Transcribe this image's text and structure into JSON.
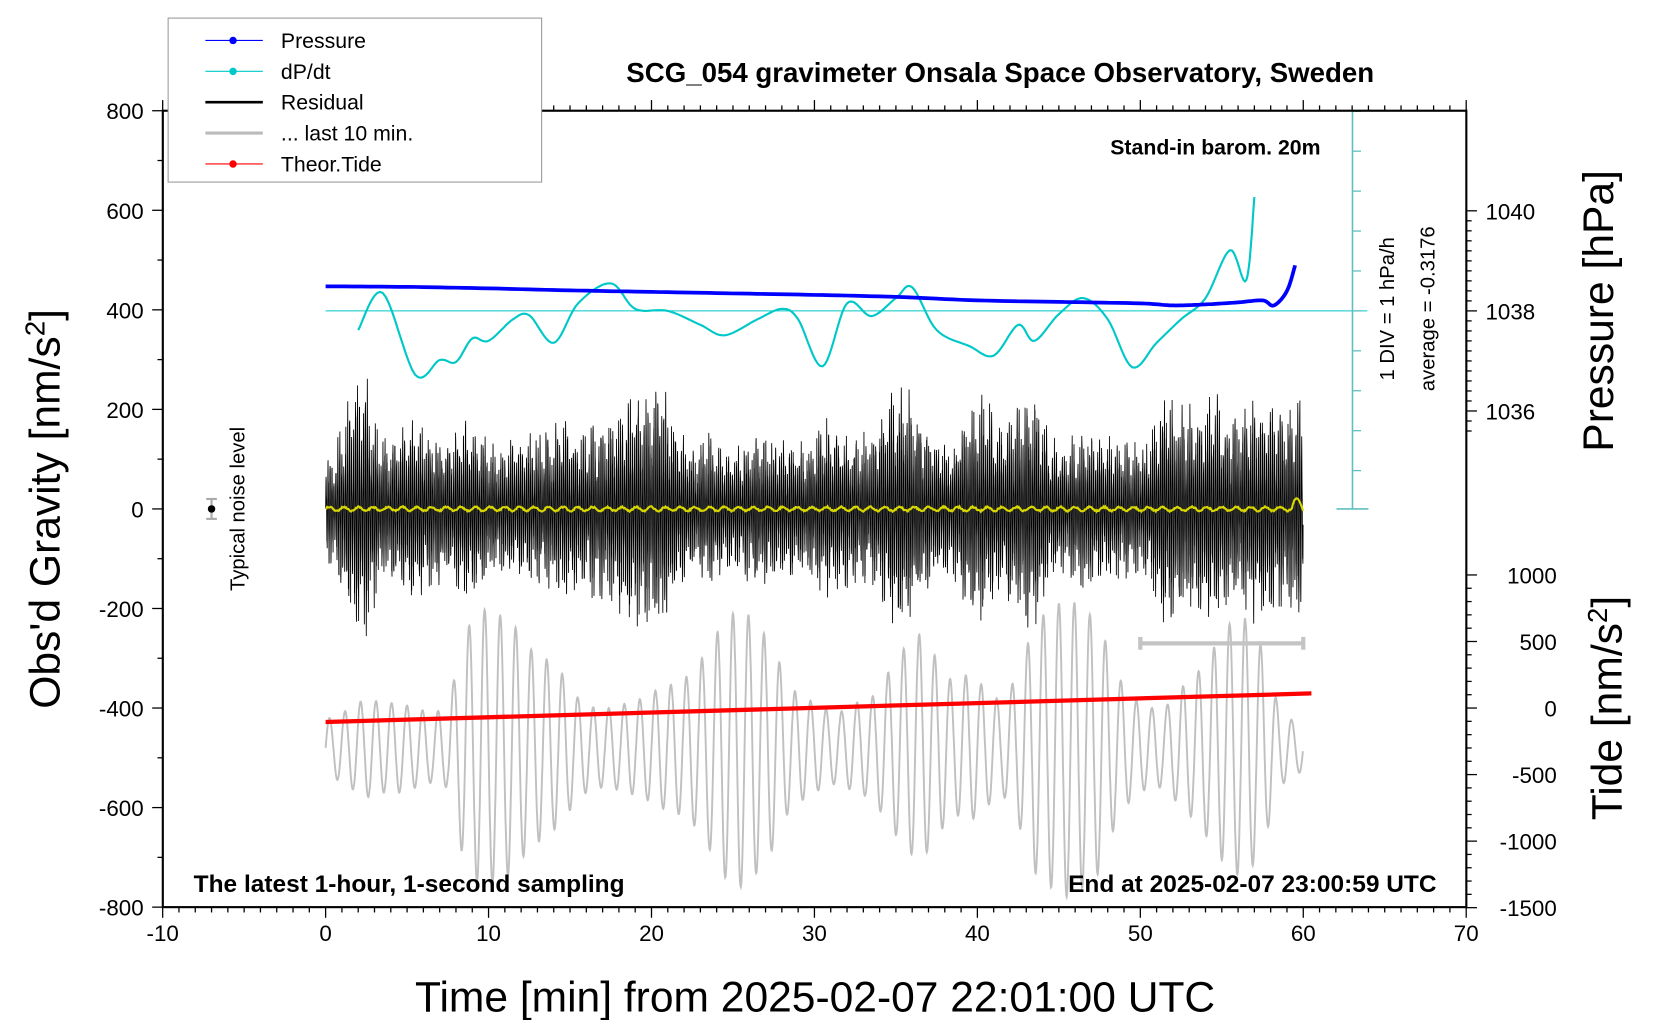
{
  "chart_data": {
    "type": "line",
    "title": "SCG_054 gravimeter Onsala Space Observatory, Sweden",
    "xlabel": "Time [min] from 2025-02-07 22:01:00 UTC",
    "ylabel_left": "Obs'd Gravity [nm/s",
    "ylabel_left_sup": "2",
    "ylabel_left_close": "]",
    "ylabel_right_top": "Pressure [hPa]",
    "ylabel_right_bottom": "Tide [nm/s",
    "ylabel_right_bottom_sup": "2",
    "ylabel_right_bottom_close": "]",
    "xlim": [
      -10,
      70
    ],
    "ylim_gravity": [
      -800,
      800
    ],
    "x_ticks": [
      "-10",
      "0",
      "10",
      "20",
      "30",
      "40",
      "50",
      "60",
      "70"
    ],
    "y_ticks_gravity": [
      "800",
      "600",
      "400",
      "200",
      "0",
      "-200",
      "-400",
      "-600",
      "-800"
    ],
    "y_ticks_pressure": [
      "1040",
      "1038",
      "1036"
    ],
    "y_ticks_tide": [
      "1000",
      "500",
      "0",
      "-500",
      "-1000",
      "-1500"
    ],
    "annotations": {
      "stand_in": "Stand-in barom. 20m",
      "div_label": "1 DIV = 1 hPa/h",
      "average": "average = -0.3176",
      "noise_label": "Typical noise level",
      "bottom_left": "The latest 1-hour, 1-second sampling",
      "bottom_right": "End at 2025-02-07 23:00:59 UTC"
    },
    "legend": {
      "placement": "top-left",
      "items": [
        {
          "label": "Pressure",
          "color": "#0000ff",
          "marker": true
        },
        {
          "label": "dP/dt",
          "color": "#00c8c8",
          "marker": true
        },
        {
          "label": "Residual",
          "color": "#000000",
          "marker": false
        },
        {
          "label": "... last 10 min.",
          "color": "#bbbbbb",
          "marker": false
        },
        {
          "label": "Theor.Tide",
          "color": "#ff0000",
          "marker": true
        }
      ]
    },
    "colors": {
      "pressure": "#0000ff",
      "dpdt": "#00c8c8",
      "residual": "#000000",
      "last10": "#c0c0c0",
      "tide": "#ff0000",
      "filtered": "#d8d800",
      "scale": "#5fbfbf"
    },
    "series": [
      {
        "name": "Pressure",
        "unit": "hPa",
        "x": [
          0,
          5,
          10,
          15,
          20,
          25,
          30,
          35,
          40,
          45,
          50,
          52,
          54,
          56,
          57.5,
          58.2,
          59,
          59.5
        ],
        "values": [
          1038.49,
          1038.48,
          1038.45,
          1038.41,
          1038.38,
          1038.35,
          1038.32,
          1038.28,
          1038.21,
          1038.18,
          1038.15,
          1038.11,
          1038.13,
          1038.17,
          1038.21,
          1038.11,
          1038.4,
          1038.91
        ]
      },
      {
        "name": "dP/dt",
        "unit": "hPa/h",
        "x": [
          2,
          3.5,
          5.5,
          7,
          8,
          9,
          10,
          11.5,
          12.5,
          14,
          15.5,
          17.5,
          19,
          21,
          23,
          24.5,
          26.5,
          28,
          29,
          30.5,
          32,
          33.5,
          35,
          36,
          37.5,
          39.5,
          41,
          42.5,
          43.5,
          45,
          46.5,
          48,
          49.5,
          51,
          52.5,
          54,
          55.5,
          56.5,
          57
        ],
        "values": [
          -0.48,
          0.45,
          -1.6,
          -1.23,
          -1.28,
          -0.69,
          -0.75,
          -0.21,
          -0.11,
          -0.8,
          0.19,
          0.69,
          0.05,
          0,
          -0.35,
          -0.61,
          -0.21,
          0.05,
          -0.21,
          -1.39,
          0.19,
          -0.13,
          0.32,
          0.59,
          -0.48,
          -0.88,
          -1.12,
          -0.35,
          -0.75,
          -0.08,
          0.32,
          -0.21,
          -1.41,
          -0.8,
          -0.21,
          0.32,
          1.52,
          0.77,
          2.85
        ]
      },
      {
        "name": "Residual envelope",
        "unit": "nm/s2",
        "x_step_min": 1,
        "values": [
          120,
          250,
          280,
          150,
          170,
          200,
          180,
          150,
          200,
          180,
          130,
          150,
          160,
          170,
          200,
          170,
          190,
          200,
          240,
          240,
          280,
          180,
          130,
          170,
          130,
          140,
          170,
          150,
          150,
          140,
          200,
          180,
          160,
          160,
          240,
          280,
          200,
          150,
          140,
          240,
          240,
          180,
          240,
          270,
          150,
          140,
          180,
          160,
          150,
          140,
          150,
          260,
          250,
          210,
          270,
          200,
          230,
          250,
          220,
          230
        ]
      },
      {
        "name": "... last 10 min. envelope",
        "unit": "nm/s2",
        "center": -480,
        "x_step_min": 1,
        "values": [
          60,
          80,
          100,
          90,
          90,
          80,
          70,
          80,
          230,
          280,
          270,
          250,
          200,
          180,
          150,
          100,
          80,
          80,
          90,
          100,
          120,
          130,
          150,
          200,
          260,
          280,
          250,
          200,
          120,
          100,
          80,
          70,
          90,
          100,
          150,
          200,
          230,
          180,
          130,
          150,
          120,
          90,
          150,
          250,
          280,
          300,
          280,
          250,
          150,
          100,
          80,
          80,
          120,
          150,
          200,
          250,
          260,
          200,
          80,
          50
        ]
      },
      {
        "name": "Theor.Tide",
        "unit": "nm/s2 (tide axis)",
        "x": [
          0,
          60.5
        ],
        "values": [
          -105,
          110
        ]
      }
    ],
    "noise_level": {
      "x": -7,
      "value": 0,
      "error": 20
    },
    "last10_bar": {
      "x": [
        50,
        60
      ],
      "value_gravity": -270
    }
  }
}
